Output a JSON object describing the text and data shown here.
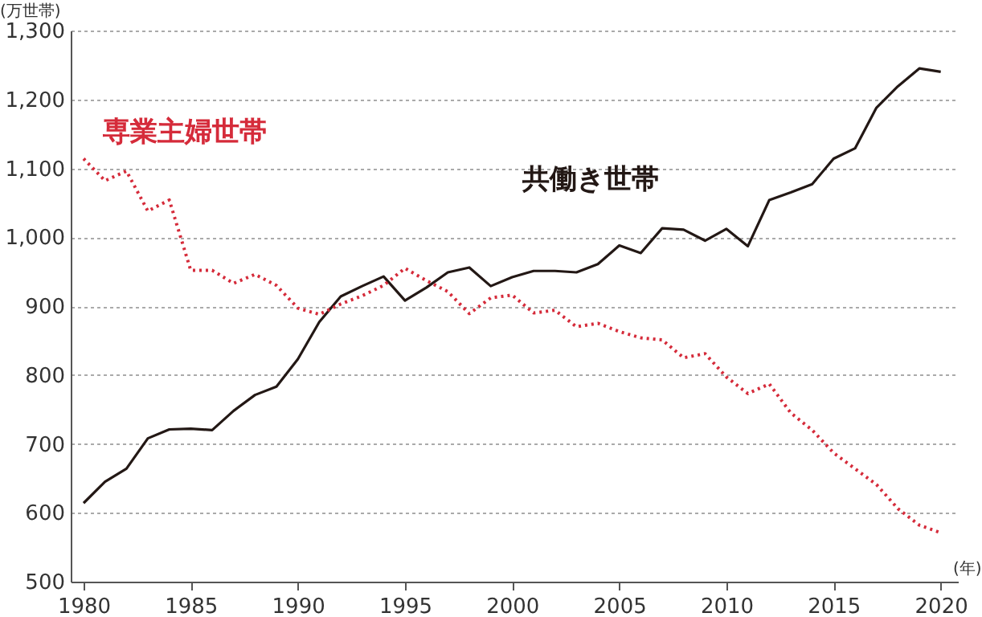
{
  "chart_data": {
    "type": "line",
    "ylabel": "(万世帯)",
    "xlabel": "(年)",
    "x": [
      1980,
      1981,
      1982,
      1983,
      1984,
      1985,
      1986,
      1987,
      1988,
      1989,
      1990,
      1991,
      1992,
      1993,
      1994,
      1995,
      1996,
      1997,
      1998,
      1999,
      2000,
      2001,
      2002,
      2003,
      2004,
      2005,
      2006,
      2007,
      2008,
      2009,
      2010,
      2011,
      2012,
      2013,
      2014,
      2015,
      2016,
      2017,
      2018,
      2019,
      2020
    ],
    "series": [
      {
        "name": "共働き世帯",
        "color": "#231815",
        "line_style": "solid",
        "values": [
          614,
          645,
          664,
          708,
          721,
          722,
          720,
          748,
          771,
          783,
          823,
          877,
          914,
          929,
          943,
          908,
          927,
          949,
          956,
          929,
          942,
          951,
          951,
          949,
          961,
          988,
          977,
          1013,
          1011,
          995,
          1012,
          987,
          1054,
          1065,
          1077,
          1114,
          1129,
          1188,
          1219,
          1245,
          1240
        ]
      },
      {
        "name": "専業主婦世帯",
        "color": "#d52b3a",
        "line_style": "dotted",
        "values": [
          1114,
          1082,
          1096,
          1038,
          1054,
          952,
          952,
          933,
          946,
          930,
          897,
          888,
          903,
          915,
          930,
          955,
          937,
          921,
          889,
          912,
          916,
          890,
          894,
          870,
          875,
          863,
          854,
          851,
          825,
          831,
          797,
          773,
          787,
          745,
          720,
          687,
          664,
          641,
          606,
          582,
          571
        ]
      }
    ],
    "xlim": [
      1979.4,
      2020.8
    ],
    "xticks": [
      1980,
      1985,
      1990,
      1995,
      2000,
      2005,
      2010,
      2015,
      2020
    ],
    "ylim": [
      500,
      1300
    ],
    "yticks": [
      {
        "value": 500,
        "label": "500"
      },
      {
        "value": 600,
        "label": "600"
      },
      {
        "value": 700,
        "label": "700"
      },
      {
        "value": 800,
        "label": "800"
      },
      {
        "value": 900,
        "label": "900"
      },
      {
        "value": 1000,
        "label": "1,000"
      },
      {
        "value": 1100,
        "label": "1,100"
      },
      {
        "value": 1200,
        "label": "1,200"
      },
      {
        "value": 1300,
        "label": "1,300"
      }
    ],
    "grid": "y",
    "marker": "none"
  }
}
